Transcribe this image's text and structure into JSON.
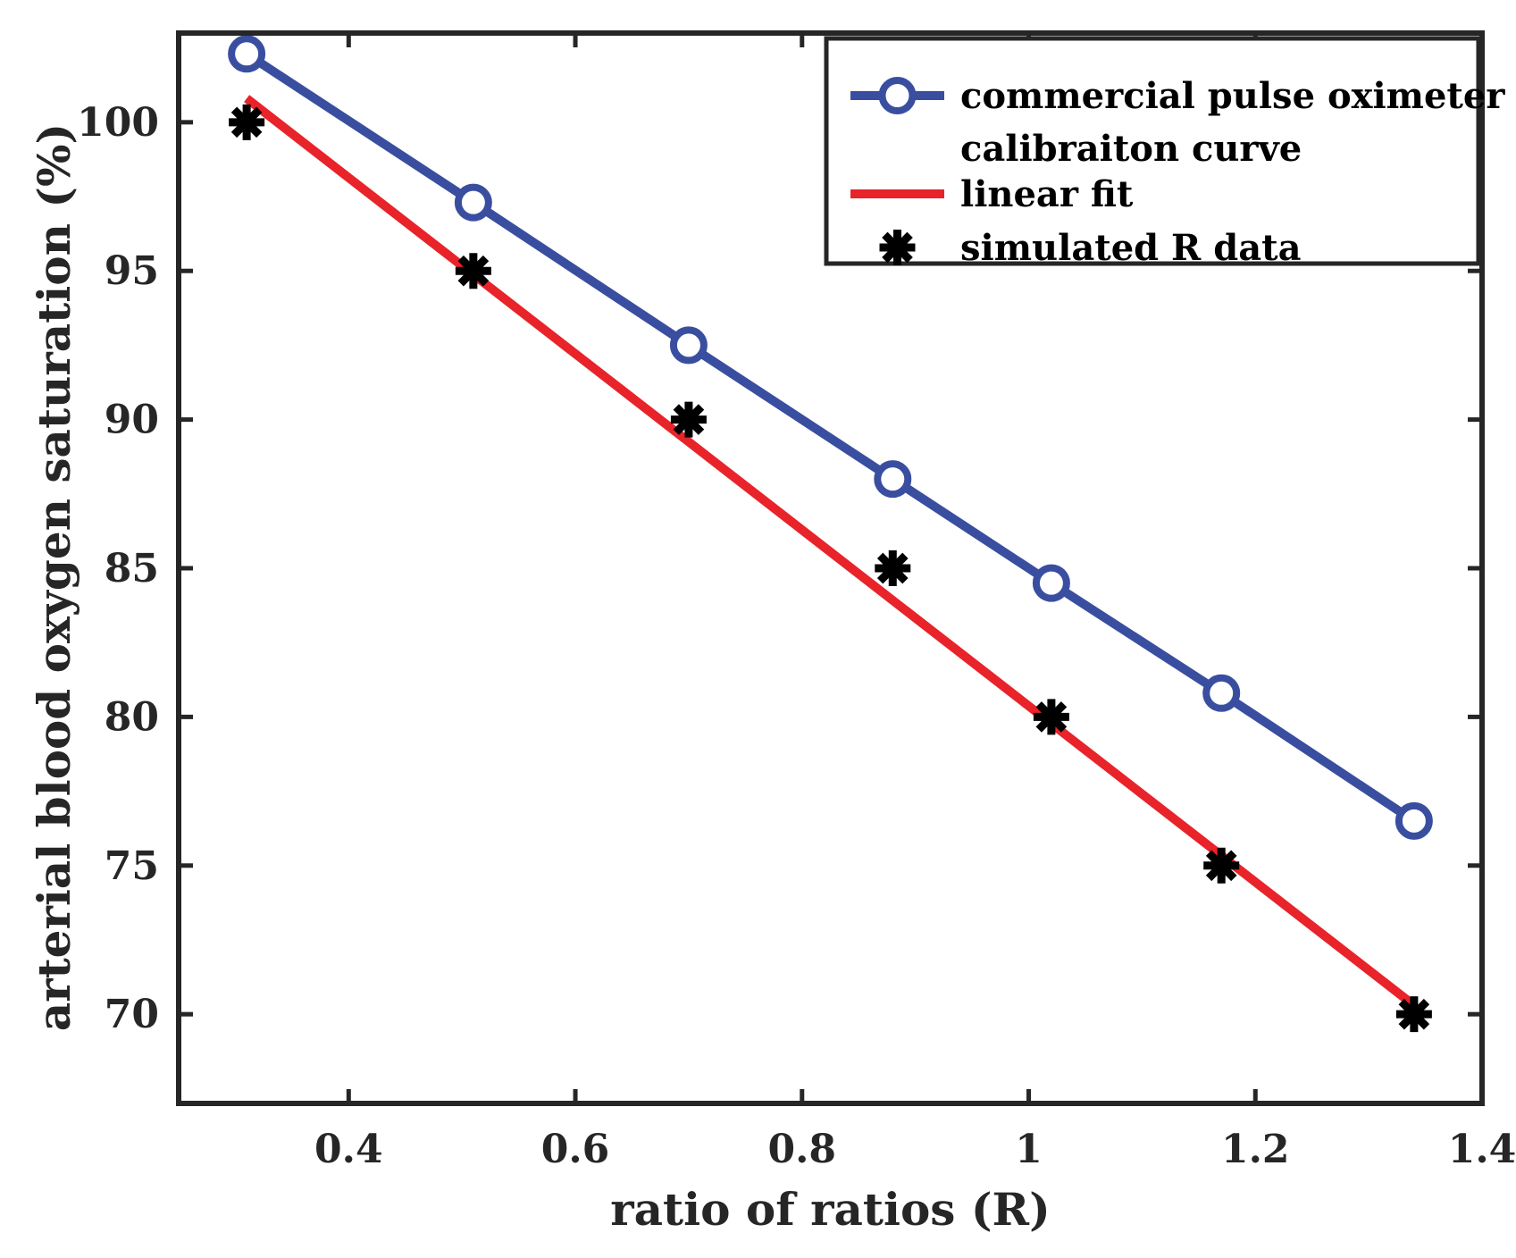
{
  "chart_data": {
    "type": "line",
    "title": "",
    "xlabel": "ratio of ratios (R)",
    "ylabel": "arterial blood oxygen saturation (%)",
    "xlim": [
      0.25,
      1.4
    ],
    "ylim": [
      67,
      103
    ],
    "xticks": [
      0.4,
      0.6,
      0.8,
      1,
      1.2,
      1.4
    ],
    "xtick_labels": [
      "0.4",
      "0.6",
      "0.8",
      "1",
      "1.2",
      "1.4"
    ],
    "yticks": [
      70,
      75,
      80,
      85,
      90,
      95,
      100
    ],
    "ytick_labels": [
      "70",
      "75",
      "80",
      "85",
      "90",
      "95",
      "100"
    ],
    "legend_position": "top-right",
    "series": [
      {
        "name": "commercial pulse oximeter calibraiton curve",
        "legend_lines": [
          "commercial pulse oximeter",
          "calibraiton curve"
        ],
        "style": "line-with-circle-markers",
        "color": "#3a4ea0",
        "x": [
          0.31,
          0.51,
          0.7,
          0.88,
          1.02,
          1.17,
          1.34
        ],
        "y": [
          102.3,
          97.3,
          92.5,
          88.0,
          84.5,
          80.8,
          76.5
        ]
      },
      {
        "name": "linear fit",
        "style": "line",
        "color": "#e8232a",
        "x": [
          0.31,
          1.34
        ],
        "y": [
          100.8,
          70.3
        ]
      },
      {
        "name": "simulated R data",
        "style": "asterisk-markers",
        "color": "#000000",
        "x": [
          0.31,
          0.51,
          0.7,
          0.88,
          1.02,
          1.17,
          1.34
        ],
        "y": [
          100,
          95,
          90,
          85,
          80,
          75,
          70
        ]
      }
    ]
  }
}
